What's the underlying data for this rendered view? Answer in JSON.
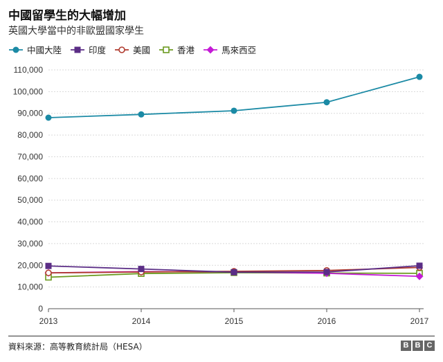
{
  "header": {
    "title": "中國留學生的大幅增加",
    "subtitle": "英國大學當中的非歐盟國家學生"
  },
  "footer": {
    "source": "資料來源：高等教育統計局（HESA）",
    "logo_letters": [
      "B",
      "B",
      "C"
    ]
  },
  "chart_data": {
    "type": "line",
    "x": [
      "2013",
      "2014",
      "2015",
      "2016",
      "2017"
    ],
    "ylim": [
      0,
      110000
    ],
    "yticks": [
      0,
      10000,
      20000,
      30000,
      40000,
      50000,
      60000,
      70000,
      80000,
      90000,
      100000,
      110000
    ],
    "ytick_labels": [
      "0",
      "10,000",
      "20,000",
      "30,000",
      "40,000",
      "50,000",
      "60,000",
      "70,000",
      "80,000",
      "90,000",
      "100,000",
      "110,000"
    ],
    "grid": "horizontal",
    "legend_position": "top-left",
    "series": [
      {
        "name": "中國大陸",
        "color": "#1b8aa5",
        "marker": "circle-filled",
        "values": [
          88000,
          89500,
          91200,
          95100,
          106800
        ]
      },
      {
        "name": "印度",
        "color": "#5b2d86",
        "marker": "square-filled",
        "values": [
          19700,
          18300,
          16800,
          16900,
          19800
        ]
      },
      {
        "name": "美國",
        "color": "#b03a2e",
        "marker": "circle-open",
        "values": [
          16500,
          16900,
          17200,
          17600,
          19000
        ]
      },
      {
        "name": "香港",
        "color": "#6b9a1f",
        "marker": "square-open",
        "values": [
          14500,
          16200,
          16600,
          16400,
          16300
        ]
      },
      {
        "name": "馬來西亞",
        "color": "#c41bd6",
        "marker": "diamond-filled",
        "values": [
          16500,
          17100,
          17000,
          16300,
          14900
        ]
      }
    ]
  }
}
